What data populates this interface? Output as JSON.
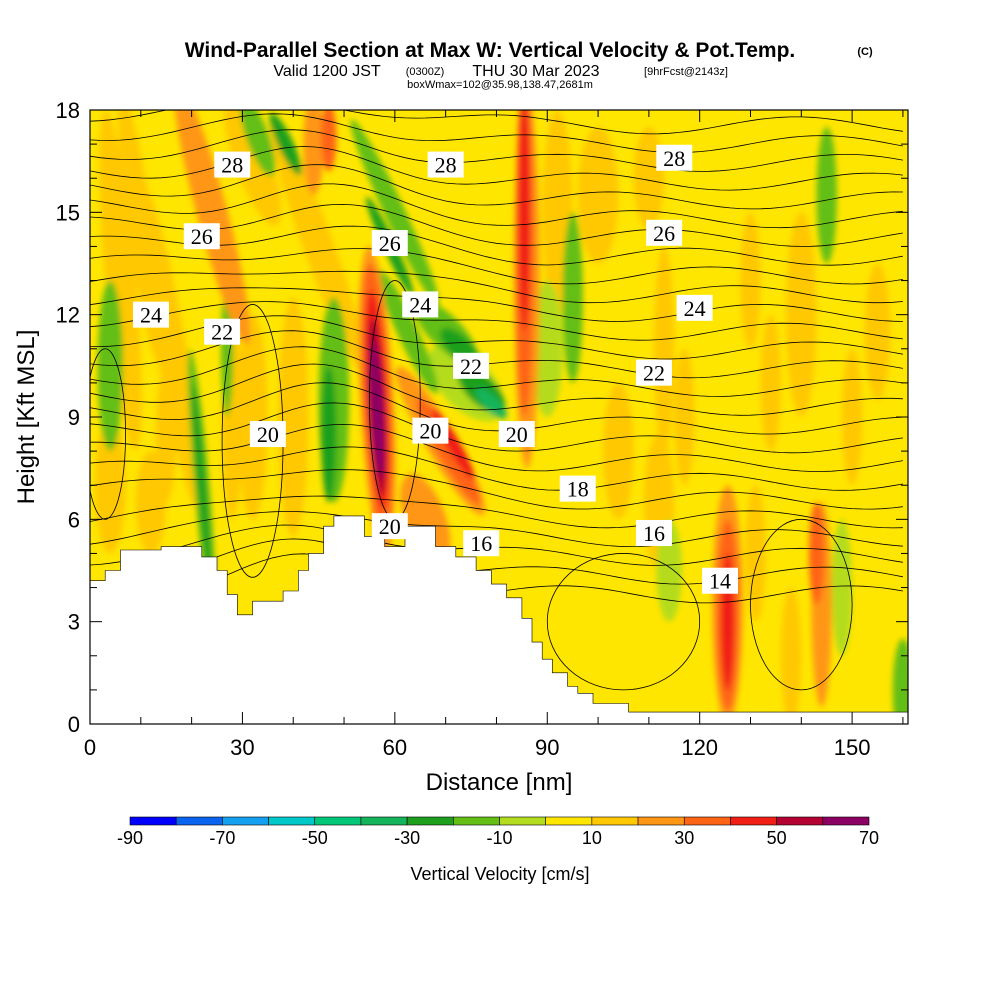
{
  "chart_data": {
    "type": "heatmap",
    "title": "Wind-Parallel Section at Max W: Vertical Velocity & Pot.Temp.",
    "copyright": "(C)",
    "subtitle_main": "Valid 1200 JST",
    "subtitle_utc": "(0300Z)",
    "subtitle_date": "THU 30 Mar 2023",
    "subtitle_fcst": "[9hrFcst@2143z]",
    "box_info": "boxWmax=102@35.98,138.47,2681m",
    "xlabel": "Distance [nm]",
    "ylabel": "Height [Kft MSL]",
    "xlim": [
      0,
      161
    ],
    "ylim": [
      0,
      18
    ],
    "x_ticks": [
      "0",
      "30",
      "60",
      "90",
      "120",
      "150"
    ],
    "x_tick_values": [
      0,
      30,
      60,
      90,
      120,
      150
    ],
    "y_ticks": [
      "0",
      "3",
      "6",
      "9",
      "12",
      "15",
      "18"
    ],
    "y_tick_values": [
      0,
      3,
      6,
      9,
      12,
      15,
      18
    ],
    "colorbar": {
      "label": "Vertical Velocity [cm/s]",
      "tick_labels": [
        "-90",
        "-70",
        "-50",
        "-30",
        "-10",
        "10",
        "30",
        "50",
        "70"
      ],
      "levels": [
        -90,
        -80,
        -70,
        -60,
        -50,
        -40,
        -30,
        -20,
        -10,
        0,
        10,
        20,
        30,
        40,
        50,
        60,
        70
      ],
      "colors": [
        "#0000ff",
        "#0a64f0",
        "#14a0f0",
        "#00c8c8",
        "#00c878",
        "#14b45a",
        "#1ea01e",
        "#64be14",
        "#b4dc1e",
        "#ffe600",
        "#ffc800",
        "#ff9614",
        "#ff6414",
        "#f01e14",
        "#b40032",
        "#8c0064"
      ]
    },
    "theta_contours": [
      {
        "label": "28",
        "x": 28,
        "y": 16.4
      },
      {
        "label": "28",
        "x": 70,
        "y": 16.4
      },
      {
        "label": "28",
        "x": 115,
        "y": 16.6
      },
      {
        "label": "26",
        "x": 22,
        "y": 14.3
      },
      {
        "label": "26",
        "x": 59,
        "y": 14.1
      },
      {
        "label": "26",
        "x": 113,
        "y": 14.4
      },
      {
        "label": "24",
        "x": 12,
        "y": 12.0
      },
      {
        "label": "24",
        "x": 65,
        "y": 12.3
      },
      {
        "label": "24",
        "x": 119,
        "y": 12.2
      },
      {
        "label": "22",
        "x": 26,
        "y": 11.5
      },
      {
        "label": "22",
        "x": 75,
        "y": 10.5
      },
      {
        "label": "22",
        "x": 111,
        "y": 10.3
      },
      {
        "label": "20",
        "x": 35,
        "y": 8.5
      },
      {
        "label": "20",
        "x": 67,
        "y": 8.6
      },
      {
        "label": "20",
        "x": 84,
        "y": 8.5
      },
      {
        "label": "20",
        "x": 59,
        "y": 5.8
      },
      {
        "label": "18",
        "x": 96,
        "y": 6.9
      },
      {
        "label": "16",
        "x": 77,
        "y": 5.3
      },
      {
        "label": "16",
        "x": 111,
        "y": 5.6
      },
      {
        "label": "14",
        "x": 124,
        "y": 4.2
      }
    ],
    "vertical_velocity_features": [
      {
        "x": 56.5,
        "y": 9.0,
        "value": 70
      },
      {
        "x": 85.5,
        "y": 14.0,
        "value": 40
      },
      {
        "x": 70.5,
        "y": 8.0,
        "value": 30
      },
      {
        "x": 125.5,
        "y": 3.0,
        "value": 40
      },
      {
        "x": 78.5,
        "y": 9.5,
        "value": -30
      },
      {
        "x": 60.5,
        "y": 13.5,
        "value": -30
      },
      {
        "x": 38.5,
        "y": 17.0,
        "value": -20
      },
      {
        "x": 22.5,
        "y": 7.0,
        "value": -20
      }
    ]
  }
}
